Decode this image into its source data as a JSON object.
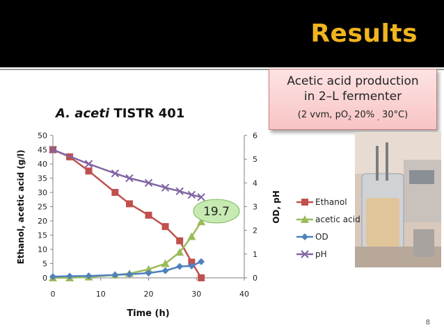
{
  "slide": {
    "title": "Results",
    "page_number": "8",
    "callout": {
      "line1": "Acetic acid production",
      "line2": "in 2–L fermenter",
      "line3_a": "(2 vvm, pO",
      "line3_sub": "2",
      "line3_b": " 20% ",
      "line3_sub2": ",",
      "line3_c": " 30°C)"
    },
    "annotation": "19.7",
    "colors": {
      "topbar": "#000000",
      "title": "#f0b41e",
      "callout_bg": "#fbd3d3"
    }
  },
  "chart_title": {
    "species": "A. aceti",
    "strain": " TISTR 401"
  },
  "chart_data": {
    "type": "line",
    "xlabel": "Time (h)",
    "ylabel": "Ethanol, acetic acid (g/l)",
    "y2label": "OD, pH",
    "xlim": [
      0,
      40
    ],
    "ylim": [
      0,
      50
    ],
    "y2lim": [
      0,
      6
    ],
    "xticks": [
      0,
      10,
      20,
      30,
      40
    ],
    "yticks": [
      0,
      5,
      10,
      15,
      20,
      25,
      30,
      35,
      40,
      45,
      50
    ],
    "y2ticks": [
      0,
      1,
      2,
      3,
      4,
      5,
      6
    ],
    "legend_position": "right",
    "series": [
      {
        "name": "Ethanol",
        "axis": "left",
        "marker": "square",
        "color": "#c0504d",
        "x": [
          0,
          3.5,
          7.5,
          13,
          16,
          20,
          23.5,
          26.5,
          29,
          31
        ],
        "y": [
          45,
          42.5,
          37.5,
          30,
          26,
          22,
          18,
          13,
          5.5,
          0
        ]
      },
      {
        "name": "acetic acid",
        "axis": "left",
        "marker": "triangle",
        "color": "#9bbb59",
        "x": [
          0,
          3.5,
          7.5,
          13,
          16,
          20,
          23.5,
          26.5,
          29,
          31
        ],
        "y": [
          0,
          0,
          0.3,
          1,
          1.5,
          3,
          5,
          9,
          14.5,
          19.7
        ]
      },
      {
        "name": "OD",
        "axis": "right",
        "marker": "diamond",
        "color": "#4f81bd",
        "x": [
          0,
          3.5,
          7.5,
          13,
          16,
          20,
          23.5,
          26.5,
          29,
          31
        ],
        "y": [
          0.05,
          0.07,
          0.08,
          0.12,
          0.15,
          0.2,
          0.3,
          0.48,
          0.5,
          0.68
        ]
      },
      {
        "name": "pH",
        "axis": "right",
        "marker": "x",
        "color": "#8064a2",
        "x": [
          0,
          7.5,
          13,
          16,
          20,
          23.5,
          26.5,
          29,
          31
        ],
        "y": [
          5.4,
          4.8,
          4.4,
          4.2,
          4.0,
          3.8,
          3.65,
          3.5,
          3.4
        ]
      }
    ]
  }
}
